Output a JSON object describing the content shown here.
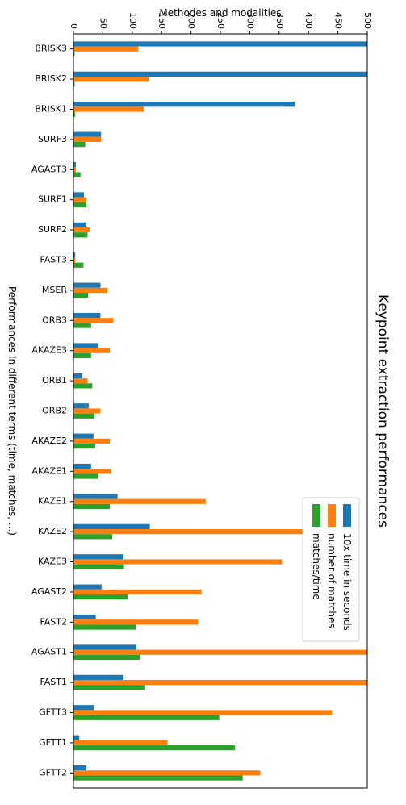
{
  "chart_data": {
    "type": "bar",
    "orientation": "horizontal",
    "title": "Keypoint extraction performances",
    "xlabel": "Performances in different terms (time, matches, ...)",
    "ylabel": "Methodes and modalities",
    "xlim": [
      0,
      500
    ],
    "x_ticks": [
      "0",
      "50",
      "100",
      "150",
      "200",
      "250",
      "300",
      "350",
      "400",
      "450",
      "500"
    ],
    "categories": [
      "BRISK3",
      "BRISK2",
      "BRISK1",
      "SURF3",
      "AGAST3",
      "SURF1",
      "SURF2",
      "FAST3",
      "MSER",
      "ORB3",
      "AKAZE3",
      "ORB1",
      "ORB2",
      "AKAZE2",
      "AKAZE1",
      "KAZE1",
      "KAZE2",
      "KAZE3",
      "AGAST2",
      "FAST2",
      "AGAST1",
      "FAST1",
      "GFTT3",
      "GFTT1",
      "GFTT2"
    ],
    "series": [
      {
        "name": "10x time in seconds",
        "color": "#1f77b4",
        "values": [
          510,
          510,
          377,
          47,
          4,
          18,
          22,
          3,
          46,
          46,
          42,
          15,
          26,
          34,
          30,
          75,
          130,
          85,
          48,
          38,
          107,
          85,
          35,
          10,
          22
        ]
      },
      {
        "name": "number of matches",
        "color": "#ff7f0e",
        "values": [
          110,
          128,
          120,
          47,
          4,
          22,
          28,
          3,
          58,
          68,
          62,
          24,
          46,
          62,
          64,
          225,
          402,
          355,
          218,
          212,
          510,
          510,
          440,
          160,
          318
        ]
      },
      {
        "name": "matches/time",
        "color": "#2ca02c",
        "values": [
          2,
          2,
          3,
          20,
          12,
          22,
          24,
          17,
          25,
          30,
          30,
          32,
          36,
          37,
          42,
          62,
          66,
          86,
          92,
          106,
          113,
          122,
          248,
          275,
          288
        ]
      }
    ],
    "legend_position": "upper-right",
    "grid": false
  }
}
